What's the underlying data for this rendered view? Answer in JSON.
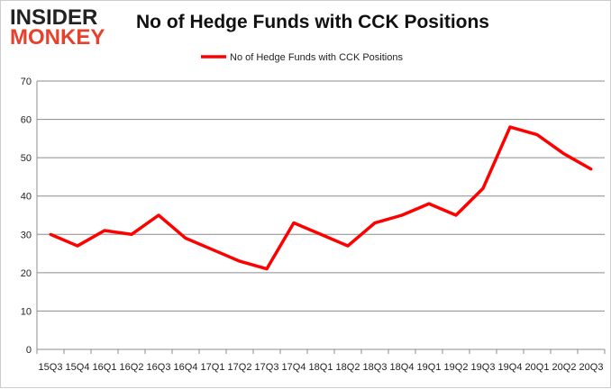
{
  "logo": {
    "line1": "INSIDER",
    "line2": "MONKEY"
  },
  "chart_data": {
    "type": "line",
    "title": "No of Hedge Funds with CCK Positions",
    "legend": {
      "position": "top",
      "entries": [
        "No of Hedge Funds with CCK Positions"
      ]
    },
    "categories": [
      "15Q3",
      "15Q4",
      "16Q1",
      "16Q2",
      "16Q3",
      "16Q4",
      "17Q1",
      "17Q2",
      "17Q3",
      "17Q4",
      "18Q1",
      "18Q2",
      "18Q3",
      "18Q4",
      "19Q1",
      "19Q2",
      "19Q3",
      "19Q4",
      "20Q1",
      "20Q2",
      "20Q3"
    ],
    "series": [
      {
        "name": "No of Hedge Funds with CCK Positions",
        "color": "#ff0000",
        "values": [
          30,
          27,
          31,
          30,
          35,
          29,
          26,
          23,
          21,
          33,
          30,
          27,
          33,
          35,
          38,
          35,
          42,
          58,
          56,
          51,
          47
        ]
      }
    ],
    "ylim": [
      0,
      70
    ],
    "yticks": [
      0,
      10,
      20,
      30,
      40,
      50,
      60,
      70
    ],
    "grid": true,
    "xlabel": "",
    "ylabel": ""
  }
}
